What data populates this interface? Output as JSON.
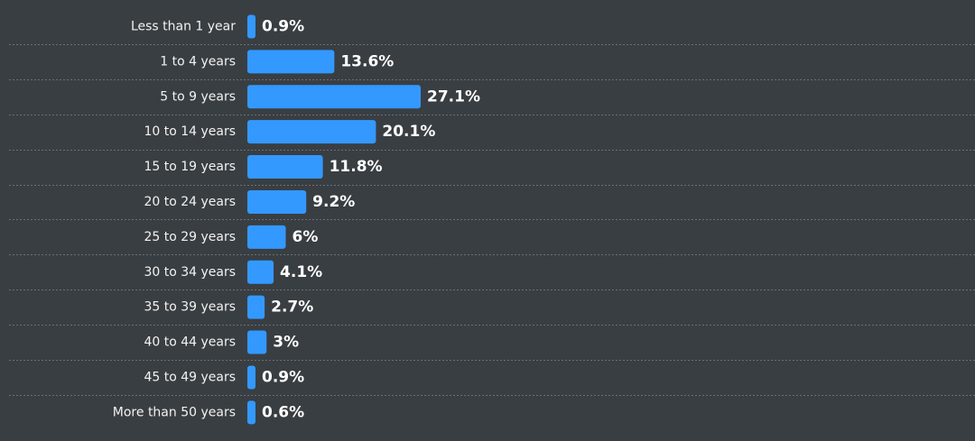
{
  "colors": {
    "background": "#393e42",
    "bar": "#3399ff",
    "separator": "#6b7075",
    "label": "#f2f2f2",
    "value_label": "#ffffff"
  },
  "chart_data": {
    "type": "bar",
    "orientation": "horizontal",
    "categories": [
      "Less than 1 year",
      "1 to 4 years",
      "5 to 9 years",
      "10 to 14 years",
      "15 to 19 years",
      "20 to 24 years",
      "25 to 29 years",
      "30 to 34 years",
      "35 to 39 years",
      "40 to 44 years",
      "45 to 49 years",
      "More than 50 years"
    ],
    "values": [
      0.9,
      13.6,
      27.1,
      20.1,
      11.8,
      9.2,
      6,
      4.1,
      2.7,
      3,
      0.9,
      0.6
    ],
    "value_labels": [
      "0.9%",
      "13.6%",
      "27.1%",
      "20.1%",
      "11.8%",
      "9.2%",
      "6%",
      "4.1%",
      "2.7%",
      "3%",
      "0.9%",
      "0.6%"
    ],
    "xlim": [
      0,
      27.1
    ],
    "grid": false,
    "legend": "none"
  }
}
